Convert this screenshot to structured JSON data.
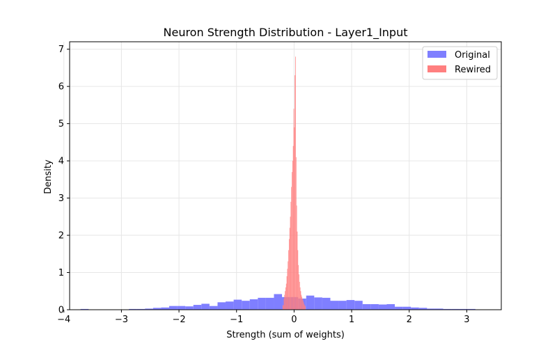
{
  "chart_data": {
    "type": "histogram",
    "title": "Neuron Strength Distribution - Layer1_Input",
    "xlabel": "Strength (sum of weights)",
    "ylabel": "Density",
    "xlim": [
      -3.9,
      3.6
    ],
    "ylim": [
      0,
      7.2
    ],
    "x_ticks": [
      -4,
      -3,
      -2,
      -1,
      0,
      1,
      2,
      3
    ],
    "x_tick_labels": [
      "−4",
      "−3",
      "−2",
      "−1",
      "0",
      "1",
      "2",
      "3"
    ],
    "y_ticks": [
      0,
      1,
      2,
      3,
      4,
      5,
      6,
      7
    ],
    "y_tick_labels": [
      "0",
      "1",
      "2",
      "3",
      "4",
      "5",
      "6",
      "7"
    ],
    "grid": true,
    "legend_position": "top-right",
    "series": [
      {
        "name": "Original",
        "color": "#7f7fff",
        "bin_width": 0.14,
        "bin_starts": [
          -3.71,
          -3.57,
          -3.43,
          -3.29,
          -3.15,
          -3.01,
          -2.87,
          -2.73,
          -2.59,
          -2.45,
          -2.31,
          -2.17,
          -2.03,
          -1.89,
          -1.75,
          -1.61,
          -1.47,
          -1.33,
          -1.19,
          -1.05,
          -0.91,
          -0.77,
          -0.63,
          -0.49,
          -0.35,
          -0.21,
          -0.07,
          0.07,
          0.21,
          0.35,
          0.49,
          0.63,
          0.77,
          0.91,
          1.05,
          1.19,
          1.33,
          1.47,
          1.61,
          1.75,
          1.89,
          2.03,
          2.17,
          2.31,
          2.45,
          2.59,
          2.73,
          2.87,
          3.01
        ],
        "densities": [
          0.02,
          0.0,
          0.0,
          0.0,
          0.0,
          0.0,
          0.02,
          0.02,
          0.03,
          0.05,
          0.06,
          0.1,
          0.1,
          0.09,
          0.13,
          0.16,
          0.1,
          0.2,
          0.22,
          0.27,
          0.24,
          0.28,
          0.32,
          0.32,
          0.42,
          0.34,
          0.34,
          0.3,
          0.38,
          0.33,
          0.32,
          0.24,
          0.24,
          0.26,
          0.24,
          0.15,
          0.15,
          0.14,
          0.15,
          0.08,
          0.08,
          0.06,
          0.05,
          0.03,
          0.03,
          0.02,
          0.02,
          0.02,
          0.02
        ]
      },
      {
        "name": "Rewired",
        "color": "#ff7f7f",
        "bin_width": 0.01,
        "bin_starts": [
          -0.2,
          -0.19,
          -0.18,
          -0.17,
          -0.16,
          -0.15,
          -0.14,
          -0.13,
          -0.12,
          -0.11,
          -0.1,
          -0.09,
          -0.08,
          -0.07,
          -0.06,
          -0.05,
          -0.04,
          -0.03,
          -0.02,
          -0.01,
          0.0,
          0.01,
          0.02,
          0.03,
          0.04,
          0.05,
          0.06,
          0.07,
          0.08,
          0.09,
          0.1,
          0.11,
          0.12,
          0.13,
          0.14,
          0.15,
          0.16,
          0.17,
          0.18,
          0.19
        ],
        "densities": [
          0.12,
          0.12,
          0.3,
          0.4,
          0.5,
          0.6,
          0.7,
          0.9,
          1.1,
          1.3,
          1.6,
          1.9,
          2.2,
          2.5,
          2.9,
          3.3,
          3.7,
          4.0,
          4.4,
          5.4,
          4.9,
          6.3,
          6.8,
          4.1,
          2.8,
          2.1,
          1.6,
          1.2,
          0.95,
          0.75,
          0.6,
          0.5,
          0.4,
          0.35,
          0.3,
          0.25,
          0.2,
          0.15,
          0.12,
          0.1
        ]
      }
    ]
  }
}
